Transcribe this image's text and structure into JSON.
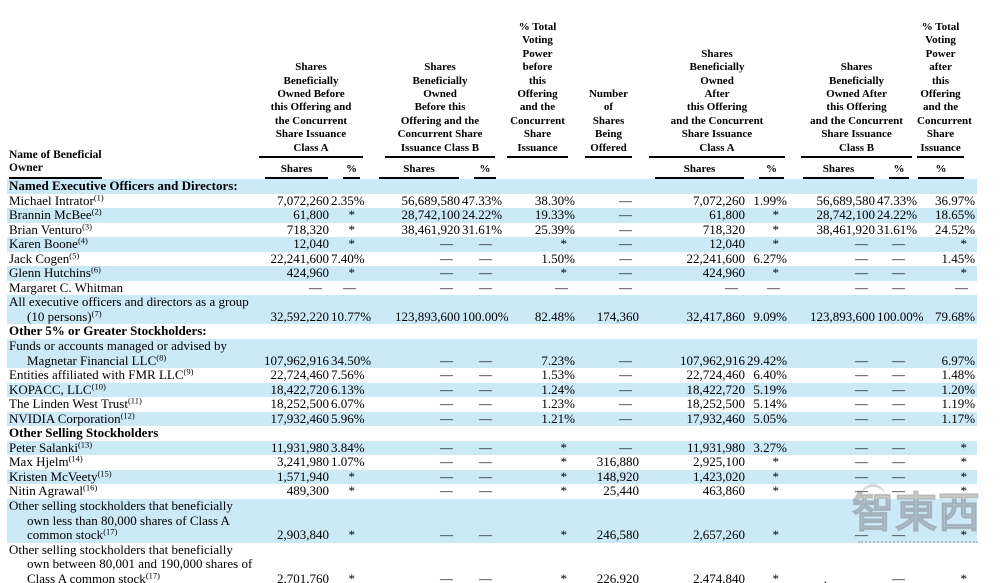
{
  "colors": {
    "row_stripe": "#cce9f8",
    "text": "#000000",
    "rule": "#000000",
    "watermark_gray": "#c8c8c8"
  },
  "header": {
    "name_col_lines": [
      "Name of Beneficial",
      "Owner"
    ],
    "groups": [
      {
        "id": "a_before",
        "colspan": 2,
        "lines": [
          "Shares",
          "Beneficially",
          "Owned Before",
          "this Offering and",
          "the Concurrent",
          "Share Issuance",
          "Class A"
        ],
        "sub": [
          "Shares",
          "%"
        ]
      },
      {
        "id": "b_before",
        "colspan": 2,
        "lines": [
          "Shares",
          "Beneficially",
          "Owned",
          "Before this",
          "Offering and the",
          "Concurrent Share",
          "Issuance Class B"
        ],
        "sub": [
          "Shares",
          "%"
        ]
      },
      {
        "id": "voting_before",
        "colspan": 1,
        "lines": [
          "% Total",
          "Voting",
          "Power",
          "before",
          "this",
          "Offering",
          "and the",
          "Concurrent",
          "Share",
          "Issuance"
        ],
        "sub": []
      },
      {
        "id": "offered",
        "colspan": 1,
        "lines": [
          "Number",
          "of",
          "Shares",
          "Being",
          "Offered"
        ],
        "sub": []
      },
      {
        "id": "a_after",
        "colspan": 2,
        "lines": [
          "Shares",
          "Beneficially",
          "Owned",
          "After",
          "this Offering",
          "and the Concurrent",
          "Share Issuance",
          "Class A"
        ],
        "sub": [
          "Shares",
          "%"
        ]
      },
      {
        "id": "b_after",
        "colspan": 2,
        "lines": [
          "Shares",
          "Beneficially",
          "Owned After",
          "this Offering",
          "and the Concurrent",
          "Share Issuance",
          "Class B"
        ],
        "sub": [
          "Shares",
          "%"
        ]
      },
      {
        "id": "voting_after",
        "colspan": 1,
        "lines": [
          "% Total",
          "Voting",
          "Power",
          "after",
          "this",
          "Offering",
          "and the",
          "Concurrent",
          "Share",
          "Issuance"
        ],
        "sub": [
          "%"
        ]
      }
    ],
    "column_ids": [
      "a_shares",
      "a_pct",
      "b_shares",
      "b_pct",
      "voting_before",
      "offered",
      "aa_shares",
      "aa_pct",
      "ba_shares",
      "ba_pct",
      "voting_after"
    ]
  },
  "rows": [
    {
      "kind": "section",
      "shaded": true,
      "label": "Named Executive Officers and Directors:"
    },
    {
      "kind": "data",
      "shaded": false,
      "lines": [
        "Michael Intrator"
      ],
      "fn": "(1)",
      "cells": [
        "7,072,260",
        "2.35%",
        "56,689,580",
        "47.33%",
        "38.30%",
        "—",
        "7,072,260",
        "1.99%",
        "56,689,580",
        "47.33%",
        "36.97%"
      ]
    },
    {
      "kind": "data",
      "shaded": true,
      "lines": [
        "Brannin McBee"
      ],
      "fn": "(2)",
      "cells": [
        "61,800",
        "*",
        "28,742,100",
        "24.22%",
        "19.33%",
        "—",
        "61,800",
        "*",
        "28,742,100",
        "24.22%",
        "18.65%"
      ]
    },
    {
      "kind": "data",
      "shaded": false,
      "lines": [
        "Brian Venturo"
      ],
      "fn": "(3)",
      "cells": [
        "718,320",
        "*",
        "38,461,920",
        "31.61%",
        "25.39%",
        "—",
        "718,320",
        "*",
        "38,461,920",
        "31.61%",
        "24.52%"
      ]
    },
    {
      "kind": "data",
      "shaded": true,
      "lines": [
        "Karen Boone"
      ],
      "fn": "(4)",
      "cells": [
        "12,040",
        "*",
        "—",
        "—",
        "*",
        "—",
        "12,040",
        "*",
        "—",
        "—",
        "*"
      ]
    },
    {
      "kind": "data",
      "shaded": false,
      "lines": [
        "Jack Cogen"
      ],
      "fn": "(5)",
      "cells": [
        "22,241,600",
        "7.40%",
        "—",
        "—",
        "1.50%",
        "—",
        "22,241,600",
        "6.27%",
        "—",
        "—",
        "1.45%"
      ]
    },
    {
      "kind": "data",
      "shaded": true,
      "lines": [
        "Glenn Hutchins"
      ],
      "fn": "(6)",
      "cells": [
        "424,960",
        "*",
        "—",
        "—",
        "*",
        "—",
        "424,960",
        "*",
        "—",
        "—",
        "*"
      ]
    },
    {
      "kind": "data",
      "shaded": false,
      "lines": [
        "Margaret C. Whitman"
      ],
      "fn": null,
      "cells": [
        "—",
        "—",
        "—",
        "—",
        "—",
        "—",
        "—",
        "—",
        "—",
        "—",
        "—"
      ]
    },
    {
      "kind": "data",
      "shaded": true,
      "lines": [
        "All executive officers and directors as a group",
        "(10 persons)"
      ],
      "fn": "(7)",
      "cells": [
        "32,592,220",
        "10.77%",
        "123,893,600",
        "100.00%",
        "82.48%",
        "174,360",
        "32,417,860",
        "9.09%",
        "123,893,600",
        "100.00%",
        "79.68%"
      ]
    },
    {
      "kind": "section",
      "shaded": false,
      "label": "Other 5% or Greater Stockholders:"
    },
    {
      "kind": "data",
      "shaded": true,
      "lines": [
        "Funds or accounts managed or advised by",
        "Magnetar Financial LLC"
      ],
      "fn": "(8)",
      "cells": [
        "107,962,916",
        "34.50%",
        "—",
        "—",
        "7.23%",
        "—",
        "107,962,916",
        "29.42%",
        "—",
        "—",
        "6.97%"
      ]
    },
    {
      "kind": "data",
      "shaded": false,
      "lines": [
        "Entities affiliated with FMR LLC"
      ],
      "fn": "(9)",
      "cells": [
        "22,724,460",
        "7.56%",
        "—",
        "—",
        "1.53%",
        "—",
        "22,724,460",
        "6.40%",
        "—",
        "—",
        "1.48%"
      ]
    },
    {
      "kind": "data",
      "shaded": true,
      "lines": [
        "KOPACC, LLC"
      ],
      "fn": "(10)",
      "cells": [
        "18,422,720",
        "6.13%",
        "—",
        "—",
        "1.24%",
        "—",
        "18,422,720",
        "5.19%",
        "—",
        "—",
        "1.20%"
      ]
    },
    {
      "kind": "data",
      "shaded": false,
      "lines": [
        "The Linden West Trust"
      ],
      "fn": "(11)",
      "cells": [
        "18,252,500",
        "6.07%",
        "—",
        "—",
        "1.23%",
        "—",
        "18,252,500",
        "5.14%",
        "—",
        "—",
        "1.19%"
      ]
    },
    {
      "kind": "data",
      "shaded": true,
      "lines": [
        "NVIDIA Corporation"
      ],
      "fn": "(12)",
      "cells": [
        "17,932,460",
        "5.96%",
        "—",
        "—",
        "1.21%",
        "—",
        "17,932,460",
        "5.05%",
        "—",
        "—",
        "1.17%"
      ]
    },
    {
      "kind": "section",
      "shaded": false,
      "label": "Other Selling Stockholders"
    },
    {
      "kind": "data",
      "shaded": true,
      "lines": [
        "Peter Salanki"
      ],
      "fn": "(13)",
      "cells": [
        "11,931,980",
        "3.84%",
        "—",
        "—",
        "*",
        "—",
        "11,931,980",
        "3.27%",
        "—",
        "—",
        "*"
      ]
    },
    {
      "kind": "data",
      "shaded": false,
      "lines": [
        "Max Hjelm"
      ],
      "fn": "(14)",
      "cells": [
        "3,241,980",
        "1.07%",
        "—",
        "—",
        "*",
        "316,880",
        "2,925,100",
        "*",
        "—",
        "—",
        "*"
      ]
    },
    {
      "kind": "data",
      "shaded": true,
      "lines": [
        "Kristen McVeety"
      ],
      "fn": "(15)",
      "cells": [
        "1,571,940",
        "*",
        "—",
        "—",
        "*",
        "148,920",
        "1,423,020",
        "*",
        "—",
        "—",
        "*"
      ]
    },
    {
      "kind": "data",
      "shaded": false,
      "lines": [
        "Nitin Agrawal"
      ],
      "fn": "(16)",
      "cells": [
        "489,300",
        "*",
        "—",
        "—",
        "*",
        "25,440",
        "463,860",
        "*",
        "—",
        "—",
        "*"
      ]
    },
    {
      "kind": "data",
      "shaded": true,
      "lines": [
        "Other selling stockholders that beneficially",
        "own less than 80,000 shares of Class A",
        "common stock"
      ],
      "fn": "(17)",
      "cells": [
        "2,903,840",
        "*",
        "—",
        "—",
        "*",
        "246,580",
        "2,657,260",
        "*",
        "—",
        "—",
        "*"
      ]
    },
    {
      "kind": "data",
      "shaded": false,
      "lines": [
        "Other selling stockholders that beneficially",
        "own between 80,001 and 190,000 shares of",
        "Class A common stock"
      ],
      "fn": "(17)",
      "cells": [
        "2,701,760",
        "*",
        "—",
        "—",
        "*",
        "226,920",
        "2,474,840",
        "*",
        ".",
        "—",
        "*"
      ]
    }
  ],
  "watermark": {
    "text": "智東西"
  }
}
